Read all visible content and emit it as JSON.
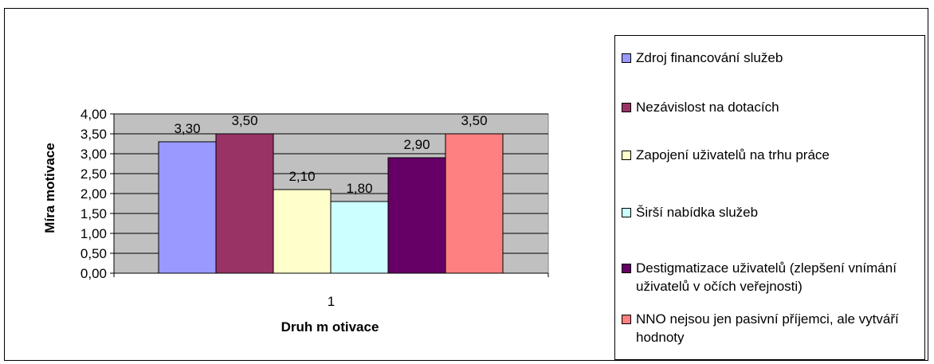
{
  "chart_data": {
    "type": "bar",
    "categories": [
      "1"
    ],
    "series": [
      {
        "name": "Zdroj financování služeb",
        "values": [
          3.3
        ],
        "label": "3,30",
        "color": "#9999ff"
      },
      {
        "name": "Nezávislost na dotacích",
        "values": [
          3.5
        ],
        "label": "3,50",
        "color": "#993366"
      },
      {
        "name": "Zapojení uživatelů na trhu práce",
        "values": [
          2.1
        ],
        "label": "2,10",
        "color": "#ffffcc"
      },
      {
        "name": "Širší nabídka služeb",
        "values": [
          1.8
        ],
        "label": "1,80",
        "color": "#ccffff"
      },
      {
        "name": "Destigmatizace uživatelů (zlepšení vnímání uživatelů v očích veřejnosti)",
        "values": [
          2.9
        ],
        "label": "2,90",
        "color": "#660066"
      },
      {
        "name": "NNO nejsou jen pasivní příjemci, ale vytváří hodnoty",
        "values": [
          3.5
        ],
        "label": "3,50",
        "color": "#ff8080"
      }
    ],
    "xlabel": "Druh m otivace",
    "ylabel": "Míra motivace",
    "ylim": [
      0,
      4
    ],
    "yticks": [
      {
        "value": 0,
        "label": "0,00"
      },
      {
        "value": 0.5,
        "label": "0,50"
      },
      {
        "value": 1,
        "label": "1,00"
      },
      {
        "value": 1.5,
        "label": "1,50"
      },
      {
        "value": 2,
        "label": "2,00"
      },
      {
        "value": 2.5,
        "label": "2,50"
      },
      {
        "value": 3,
        "label": "3,00"
      },
      {
        "value": 3.5,
        "label": "3,50"
      },
      {
        "value": 4,
        "label": "4,00"
      }
    ],
    "plot_background": "#c0c0c0",
    "grid": true,
    "legend_position": "right"
  }
}
